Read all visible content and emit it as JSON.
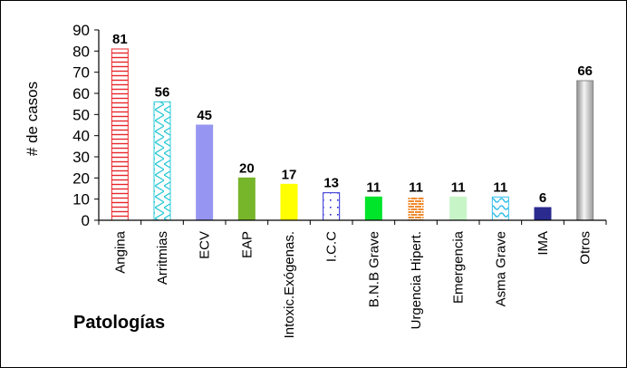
{
  "chart_data": {
    "type": "bar",
    "title": "",
    "xlabel": "Patologías",
    "ylabel": "# de casos",
    "ylim": [
      0,
      90
    ],
    "yticks": [
      0,
      10,
      20,
      30,
      40,
      50,
      60,
      70,
      80,
      90
    ],
    "grid": false,
    "legend": "none",
    "categories": [
      "Angina",
      "Arritmias",
      "ECV",
      "EAP",
      "Intoxic.Exógenas.",
      "I.C.C",
      "B.N.B Grave",
      "Urgencia Hipert.",
      "Emergencia",
      "Asma Grave",
      "IMA",
      "Otros"
    ],
    "values": [
      81,
      56,
      45,
      20,
      17,
      13,
      11,
      11,
      11,
      11,
      6,
      66
    ],
    "bar_styles": [
      {
        "pattern": "hlines",
        "fill": "#ffffff",
        "stroke": "#e8262b"
      },
      {
        "pattern": "zigzag",
        "fill": "#ffffff",
        "stroke": "#29c9d6"
      },
      {
        "pattern": "solid",
        "fill": "#9696f2",
        "stroke": "#9696f2"
      },
      {
        "pattern": "solid",
        "fill": "#77b52a",
        "stroke": "#77b52a"
      },
      {
        "pattern": "solid",
        "fill": "#ffff00",
        "stroke": "#ffff00"
      },
      {
        "pattern": "dots",
        "fill": "#ffffff",
        "stroke": "#2a2ad6"
      },
      {
        "pattern": "solid",
        "fill": "#00e52a",
        "stroke": "#00e52a"
      },
      {
        "pattern": "bricks",
        "fill": "#ee8a2d",
        "stroke": "#ffffff"
      },
      {
        "pattern": "solid",
        "fill": "#c8f5c8",
        "stroke": "#c8f5c8"
      },
      {
        "pattern": "waves",
        "fill": "#ffffff",
        "stroke": "#33bdea"
      },
      {
        "pattern": "solid",
        "fill": "#2a2a8f",
        "stroke": "#2a2a8f"
      },
      {
        "pattern": "gradient",
        "fill": "#d0d0d0",
        "stroke": "#888888"
      }
    ]
  }
}
